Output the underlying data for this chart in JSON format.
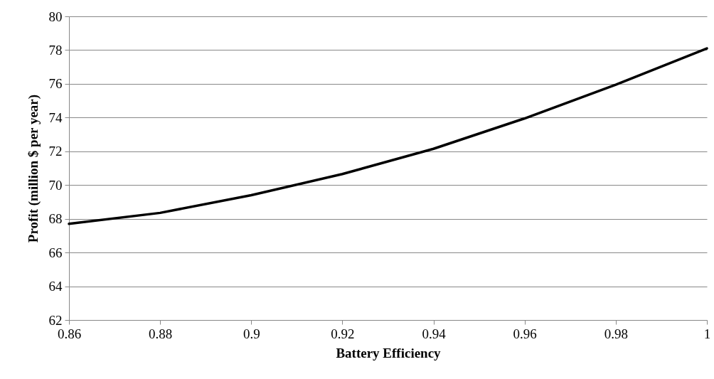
{
  "chart_data": {
    "type": "line",
    "xlabel": "Battery Efficiency",
    "ylabel": "Profit (million $ per year)",
    "x": [
      0.86,
      0.88,
      0.9,
      0.92,
      0.94,
      0.96,
      0.98,
      1
    ],
    "series": [
      {
        "color": "#000000",
        "values": [
          67.7,
          68.35,
          69.4,
          70.65,
          72.15,
          73.95,
          75.95,
          78.1
        ]
      }
    ],
    "xlim": [
      0.86,
      1
    ],
    "xticks": [
      0.86,
      0.88,
      0.9,
      0.92,
      0.94,
      0.96,
      0.98,
      1
    ],
    "ylim": [
      62,
      80
    ],
    "yticks": [
      62,
      64,
      66,
      68,
      70,
      72,
      74,
      76,
      78,
      80
    ],
    "grid": "y",
    "marker": "none",
    "line_style": "solid"
  }
}
